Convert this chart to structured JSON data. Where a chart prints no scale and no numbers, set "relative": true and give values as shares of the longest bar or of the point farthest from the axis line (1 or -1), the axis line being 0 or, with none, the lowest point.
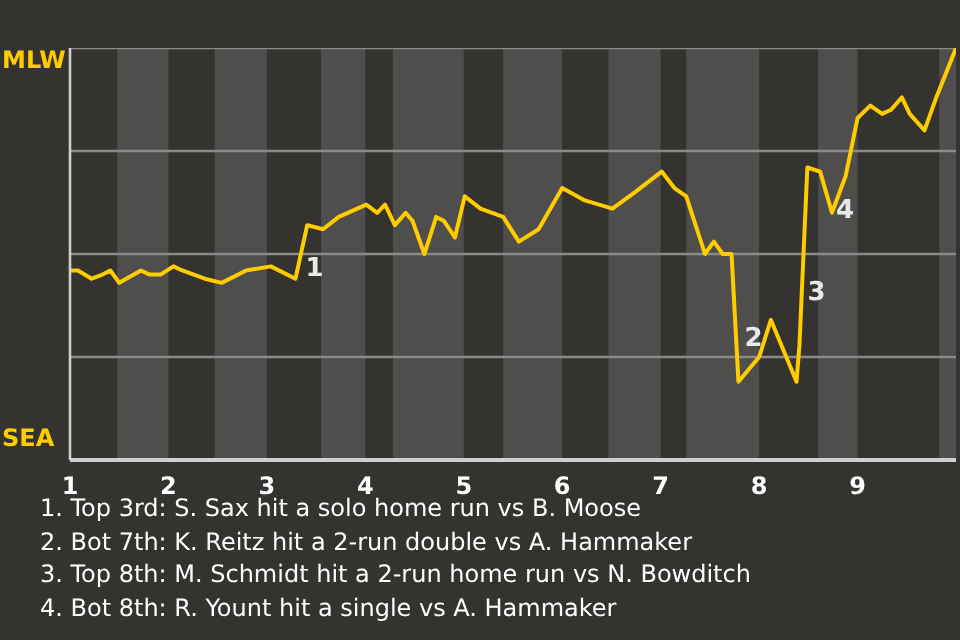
{
  "chart_data": {
    "type": "line",
    "relative": true,
    "x": [
      1.0,
      1.08,
      1.22,
      1.33,
      1.41,
      1.5,
      1.72,
      1.81,
      1.92,
      2.05,
      2.14,
      2.37,
      2.54,
      2.79,
      3.04,
      3.29,
      3.41,
      3.57,
      3.73,
      4.01,
      4.12,
      4.2,
      4.3,
      4.41,
      4.48,
      4.6,
      4.72,
      4.8,
      4.91,
      5.01,
      5.17,
      5.4,
      5.56,
      5.76,
      6.0,
      6.23,
      6.51,
      6.74,
      7.01,
      7.14,
      7.26,
      7.45,
      7.54,
      7.63,
      7.72,
      7.79,
      8.0,
      8.12,
      8.38,
      8.41,
      8.49,
      8.62,
      8.74,
      8.88,
      9.0,
      9.13,
      9.25,
      9.34,
      9.45,
      9.53,
      9.68,
      9.8,
      10.0
    ],
    "series": [
      {
        "color": "#ffcc00",
        "values": [
          0.46,
          0.46,
          0.44,
          0.45,
          0.46,
          0.43,
          0.46,
          0.45,
          0.45,
          0.47,
          0.46,
          0.44,
          0.43,
          0.46,
          0.47,
          0.44,
          0.57,
          0.56,
          0.59,
          0.62,
          0.6,
          0.62,
          0.57,
          0.6,
          0.58,
          0.5,
          0.59,
          0.58,
          0.54,
          0.64,
          0.61,
          0.59,
          0.53,
          0.56,
          0.66,
          0.63,
          0.61,
          0.65,
          0.7,
          0.66,
          0.64,
          0.5,
          0.53,
          0.5,
          0.5,
          0.19,
          0.25,
          0.34,
          0.19,
          0.28,
          0.71,
          0.7,
          0.6,
          0.69,
          0.83,
          0.86,
          0.84,
          0.85,
          0.88,
          0.84,
          0.8,
          0.88,
          1.0
        ]
      }
    ],
    "xlim": [
      1,
      10
    ],
    "xticks": [
      1,
      2,
      3,
      4,
      5,
      6,
      7,
      8,
      9
    ],
    "grid": "y",
    "marker": "none",
    "line_style": "solid",
    "bands": [
      {
        "axis": "x",
        "from": 1.48,
        "to": 2,
        "color": "#4f4e4c"
      },
      {
        "axis": "x",
        "from": 2.47,
        "to": 3,
        "color": "#4f4e4c"
      },
      {
        "axis": "x",
        "from": 3.55,
        "to": 4,
        "color": "#4f4e4c"
      },
      {
        "axis": "x",
        "from": 4.28,
        "to": 5,
        "color": "#4f4e4c"
      },
      {
        "axis": "x",
        "from": 5.4,
        "to": 6,
        "color": "#4f4e4c"
      },
      {
        "axis": "x",
        "from": 6.47,
        "to": 7,
        "color": "#4f4e4c"
      },
      {
        "axis": "x",
        "from": 7.26,
        "to": 8,
        "color": "#4f4e4c"
      },
      {
        "axis": "x",
        "from": 8.6,
        "to": 9,
        "color": "#4f4e4c"
      },
      {
        "axis": "x",
        "from": 9.83,
        "to": 10,
        "color": "#4f4e4c"
      }
    ],
    "annotations": [
      "MLW",
      "SEA",
      {
        "text": "1",
        "x": 3.33,
        "y": 0.47
      },
      {
        "text": "2",
        "x": 7.79,
        "y": 0.3
      },
      {
        "text": "3",
        "x": 8.43,
        "y": 0.41
      },
      {
        "text": "4",
        "x": 8.72,
        "y": 0.61
      },
      "1. Top 3rd: S. Sax hit a solo home run vs B. Moose",
      "2. Bot 7th: K. Reitz hit a 2-run double vs A. Hammaker",
      "3. Top 8th: M. Schmidt hit a 2-run home run vs N. Bowditch",
      "4. Bot 8th: R. Yount hit a single vs A. Hammaker"
    ]
  }
}
